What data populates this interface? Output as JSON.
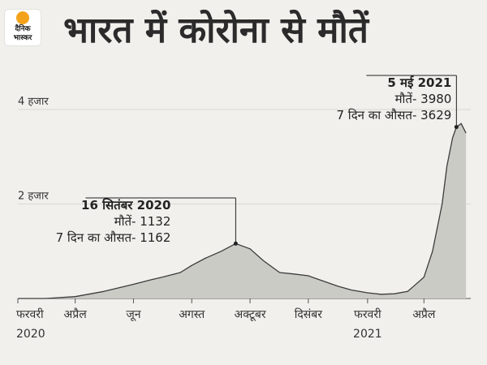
{
  "logo": {
    "line1": "दैनिक",
    "line2": "भास्कर"
  },
  "title": "भारत में कोरोना से मौतें",
  "chart_data": {
    "type": "area",
    "series": [
      {
        "x": [
          "2020-02-01",
          "2020-03-01",
          "2020-04-01",
          "2020-05-01",
          "2020-06-01",
          "2020-06-20",
          "2020-07-01",
          "2020-07-20",
          "2020-08-01",
          "2020-08-15",
          "2020-09-01",
          "2020-09-16",
          "2020-10-01",
          "2020-10-15",
          "2020-11-01",
          "2020-11-15",
          "2020-12-01",
          "2020-12-15",
          "2021-01-01",
          "2021-01-15",
          "2021-02-01",
          "2021-02-15",
          "2021-03-01",
          "2021-03-15",
          "2021-04-01",
          "2021-04-10",
          "2021-04-20",
          "2021-04-25",
          "2021-05-01",
          "2021-05-05",
          "2021-05-10",
          "2021-05-15"
        ],
        "values": [
          0,
          0,
          40,
          150,
          300,
          400,
          450,
          550,
          700,
          850,
          1000,
          1162,
          1050,
          800,
          550,
          520,
          480,
          380,
          260,
          180,
          120,
          90,
          100,
          150,
          450,
          1000,
          2000,
          2800,
          3400,
          3629,
          3700,
          3500
        ]
      }
    ],
    "xticks": [
      {
        "x": "2020-02-01",
        "label": "फरवरी"
      },
      {
        "x": "2020-04-01",
        "label": "अप्रैल"
      },
      {
        "x": "2020-06-01",
        "label": "जून"
      },
      {
        "x": "2020-08-01",
        "label": "अगस्त"
      },
      {
        "x": "2020-10-01",
        "label": "अक्टूबर"
      },
      {
        "x": "2020-12-01",
        "label": "दिसंबर"
      },
      {
        "x": "2021-02-01",
        "label": "फरवरी"
      },
      {
        "x": "2021-04-01",
        "label": "अप्रैल"
      }
    ],
    "year_labels": [
      {
        "x": "2020-02-01",
        "label": "2020"
      },
      {
        "x": "2021-02-01",
        "label": "2021"
      }
    ],
    "yticks": [
      {
        "value": 2000,
        "label": "2 हजार"
      },
      {
        "value": 4000,
        "label": "4 हजार"
      }
    ],
    "ylim": [
      0,
      4600
    ],
    "annotations": [
      {
        "x": "2020-09-16",
        "value": 1162,
        "lines": [
          "16 सितंबर 2020",
          "मौतें- 1132",
          "7 दिन का औसत- 1162"
        ]
      },
      {
        "x": "2021-05-05",
        "value": 3629,
        "lines": [
          "5 मई 2021",
          "मौतें- 3980",
          "7 दिन का औसत- 3629"
        ]
      }
    ],
    "colors": {
      "area": "#cbcbc6",
      "line": "#3c3c3c",
      "grid": "#d9d9d4"
    }
  }
}
